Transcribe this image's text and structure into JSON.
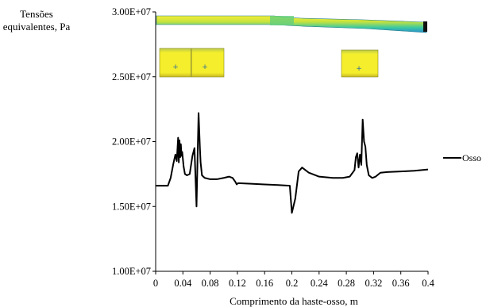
{
  "chart_data": {
    "type": "line",
    "ylabel_lines": [
      "Tensões",
      "equivalentes, Pa"
    ],
    "xlabel": "Comprimento da haste-osso, m",
    "xlim": [
      0,
      0.4
    ],
    "ylim": [
      10000000,
      30000000
    ],
    "x_ticks": [
      "0",
      "0.04",
      "0.08",
      "0.12",
      "0.16",
      "0.2",
      "0.24",
      "0.28",
      "0.32",
      "0.36",
      "0.4"
    ],
    "y_ticks": [
      "1.00E+07",
      "1.50E+07",
      "2.00E+07",
      "2.50E+07",
      "3.00E+07"
    ],
    "legend_position": "right",
    "series": [
      {
        "name": "Osso",
        "color": "#000000",
        "points": [
          [
            0.0,
            16600000
          ],
          [
            0.018,
            16600000
          ],
          [
            0.022,
            17200000
          ],
          [
            0.026,
            18300000
          ],
          [
            0.029,
            19000000
          ],
          [
            0.031,
            18500000
          ],
          [
            0.033,
            20300000
          ],
          [
            0.034,
            18400000
          ],
          [
            0.035,
            20100000
          ],
          [
            0.036,
            18800000
          ],
          [
            0.037,
            19800000
          ],
          [
            0.038,
            18900000
          ],
          [
            0.039,
            19200000
          ],
          [
            0.041,
            18100000
          ],
          [
            0.043,
            17500000
          ],
          [
            0.046,
            17400000
          ],
          [
            0.05,
            17500000
          ],
          [
            0.054,
            18900000
          ],
          [
            0.057,
            19500000
          ],
          [
            0.06,
            15000000
          ],
          [
            0.063,
            22200000
          ],
          [
            0.065,
            19500000
          ],
          [
            0.066,
            18400000
          ],
          [
            0.068,
            17400000
          ],
          [
            0.072,
            17200000
          ],
          [
            0.08,
            17100000
          ],
          [
            0.09,
            17100000
          ],
          [
            0.1,
            17200000
          ],
          [
            0.108,
            17300000
          ],
          [
            0.113,
            17200000
          ],
          [
            0.117,
            16900000
          ],
          [
            0.119,
            16700000
          ],
          [
            0.121,
            16800000
          ],
          [
            0.14,
            16750000
          ],
          [
            0.16,
            16700000
          ],
          [
            0.18,
            16650000
          ],
          [
            0.197,
            16600000
          ],
          [
            0.2,
            14500000
          ],
          [
            0.205,
            15600000
          ],
          [
            0.21,
            17700000
          ],
          [
            0.215,
            18000000
          ],
          [
            0.225,
            17600000
          ],
          [
            0.24,
            17300000
          ],
          [
            0.26,
            17200000
          ],
          [
            0.275,
            17200000
          ],
          [
            0.285,
            17300000
          ],
          [
            0.292,
            17800000
          ],
          [
            0.294,
            18800000
          ],
          [
            0.296,
            19100000
          ],
          [
            0.298,
            18000000
          ],
          [
            0.3,
            19000000
          ],
          [
            0.302,
            18200000
          ],
          [
            0.304,
            21700000
          ],
          [
            0.306,
            20000000
          ],
          [
            0.308,
            19600000
          ],
          [
            0.31,
            18200000
          ],
          [
            0.313,
            17400000
          ],
          [
            0.318,
            17200000
          ],
          [
            0.323,
            17300000
          ],
          [
            0.33,
            17600000
          ],
          [
            0.34,
            17650000
          ],
          [
            0.36,
            17700000
          ],
          [
            0.38,
            17750000
          ],
          [
            0.4,
            17850000
          ]
        ]
      }
    ]
  }
}
